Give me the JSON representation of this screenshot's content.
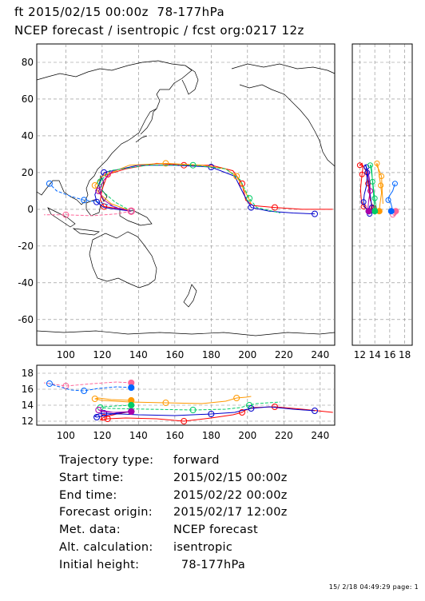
{
  "header": {
    "line1": "ft 2015/02/15 00:00z  78-177hPa",
    "line2": "NCEP forecast / isentropic / fcst org:0217 12z"
  },
  "map": {
    "lon_ticks": [
      "100",
      "120",
      "140",
      "160",
      "180",
      "200",
      "220",
      "240"
    ],
    "lat_ticks": [
      "80",
      "60",
      "40",
      "20",
      "0",
      "-20",
      "-40",
      "-60"
    ]
  },
  "side_panel": {
    "ticks": [
      "12",
      "14",
      "16",
      "18"
    ]
  },
  "height_panel": {
    "ticks": [
      "18",
      "16",
      "14",
      "12"
    ],
    "lon_ticks": [
      "100",
      "120",
      "140",
      "160",
      "180",
      "200",
      "220",
      "240"
    ]
  },
  "chart_data": {
    "type": "trajectory",
    "series": [
      {
        "color": "#ff0000",
        "points": [
          [
            136,
            -1
          ],
          [
            133,
            0
          ],
          [
            128,
            0.5
          ],
          [
            121,
            1.5
          ],
          [
            119,
            5
          ],
          [
            120,
            11
          ],
          [
            123,
            19
          ],
          [
            133,
            22
          ],
          [
            150,
            25
          ],
          [
            165,
            24
          ],
          [
            180,
            24
          ],
          [
            192,
            21
          ],
          [
            197,
            14
          ],
          [
            199,
            5
          ],
          [
            203,
            2
          ],
          [
            215,
            1
          ],
          [
            230,
            0
          ],
          [
            247,
            0
          ]
        ],
        "heights": [
          13.2,
          13.1,
          12.9,
          12.5,
          12.2,
          12.1,
          12.3,
          12.4,
          12.3,
          12.0,
          12.4,
          12.8,
          13.1,
          13.4,
          13.7,
          13.8,
          13.5,
          13.1
        ]
      },
      {
        "color": "#ff6699",
        "points": [
          [
            136,
            -1
          ],
          [
            128,
            -2.5
          ],
          [
            115,
            -3.5
          ],
          [
            100,
            -3
          ],
          [
            88,
            -3
          ]
        ],
        "heights": [
          16.8,
          16.9,
          16.7,
          16.4,
          16.8
        ]
      },
      {
        "color": "#0000cc",
        "points": [
          [
            136,
            -1
          ],
          [
            128,
            0
          ],
          [
            121,
            1
          ],
          [
            117,
            4
          ],
          [
            116,
            8
          ],
          [
            118,
            13
          ],
          [
            121,
            20
          ],
          [
            140,
            24
          ],
          [
            160,
            24
          ],
          [
            180,
            23
          ],
          [
            193,
            18
          ],
          [
            198,
            8
          ],
          [
            202,
            1
          ],
          [
            212,
            -1
          ],
          [
            225,
            -2
          ],
          [
            237,
            -2.5
          ]
        ],
        "heights": [
          13.2,
          13.0,
          12.7,
          12.5,
          12.6,
          12.9,
          13.0,
          12.8,
          12.7,
          12.9,
          13.1,
          13.4,
          13.6,
          13.8,
          13.5,
          13.3
        ]
      },
      {
        "color": "#0066ff",
        "points": [
          [
            136,
            -1
          ],
          [
            128,
            1
          ],
          [
            118,
            4
          ],
          [
            110,
            5
          ],
          [
            103,
            7
          ],
          [
            95,
            10
          ],
          [
            91,
            14
          ]
        ],
        "heights": [
          16.2,
          16.3,
          16.1,
          15.8,
          15.9,
          16.4,
          16.7
        ]
      },
      {
        "color": "#ff9900",
        "points": [
          [
            136,
            -1
          ],
          [
            125,
            3
          ],
          [
            118,
            9
          ],
          [
            116,
            13
          ],
          [
            120,
            18
          ],
          [
            135,
            24
          ],
          [
            155,
            25
          ],
          [
            175,
            24
          ],
          [
            188,
            22
          ],
          [
            194,
            18
          ],
          [
            199,
            9
          ],
          [
            202,
            3
          ]
        ],
        "heights": [
          14.6,
          14.7,
          14.9,
          14.8,
          14.6,
          14.4,
          14.3,
          14.2,
          14.5,
          14.9,
          15.0,
          15.1
        ]
      },
      {
        "color": "#00cc66",
        "points": [
          [
            136,
            -1
          ],
          [
            127,
            4
          ],
          [
            120,
            10
          ],
          [
            119,
            15
          ],
          [
            124,
            21
          ],
          [
            145,
            24
          ],
          [
            170,
            24
          ],
          [
            188,
            22
          ],
          [
            196,
            16
          ],
          [
            201,
            6
          ],
          [
            205,
            1
          ],
          [
            218,
            -2
          ]
        ],
        "heights": [
          14.0,
          13.9,
          13.8,
          13.7,
          13.6,
          13.5,
          13.4,
          13.5,
          13.7,
          14.0,
          14.2,
          14.4
        ]
      },
      {
        "color": "#aa00aa",
        "points": [
          [
            136,
            -1
          ],
          [
            127,
            1
          ],
          [
            121,
            5
          ],
          [
            118,
            10
          ],
          [
            121,
            16
          ],
          [
            126,
            21
          ]
        ],
        "heights": [
          13.2,
          13.1,
          13.2,
          13.4,
          13.3,
          13.1
        ]
      }
    ]
  },
  "info": [
    {
      "label": "Trajectory type:",
      "value": "forward"
    },
    {
      "label": "Start time:",
      "value": "2015/02/15 00:00z"
    },
    {
      "label": "End time:",
      "value": "2015/02/22 00:00z"
    },
    {
      "label": "Forecast origin:",
      "value": "2015/02/17 12:00z"
    },
    {
      "label": "Met. data:",
      "value": "NCEP forecast"
    },
    {
      "label": "Alt. calculation:",
      "value": "isentropic"
    },
    {
      "label": "Initial height:",
      "value": "  78-177hPa"
    }
  ],
  "footer": "15/ 2/18 04:49:29 page: 1"
}
